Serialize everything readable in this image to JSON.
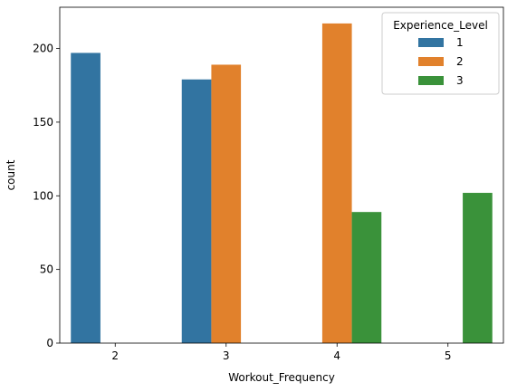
{
  "chart_data": {
    "type": "bar",
    "xlabel": "Workout_Frequency",
    "ylabel": "count",
    "categories": [
      "2",
      "3",
      "4",
      "5"
    ],
    "ylim": [
      0,
      228
    ],
    "yticks": [
      0,
      50,
      100,
      150,
      200
    ],
    "legend": {
      "title": "Experience_Level",
      "position": "top-right"
    },
    "grid": false,
    "series": [
      {
        "name": "1",
        "color": "#3274a1",
        "values": [
          197,
          179,
          null,
          null
        ]
      },
      {
        "name": "2",
        "color": "#e1812c",
        "values": [
          null,
          189,
          217,
          null
        ]
      },
      {
        "name": "3",
        "color": "#3a923a",
        "values": [
          null,
          null,
          89,
          102
        ]
      }
    ]
  }
}
